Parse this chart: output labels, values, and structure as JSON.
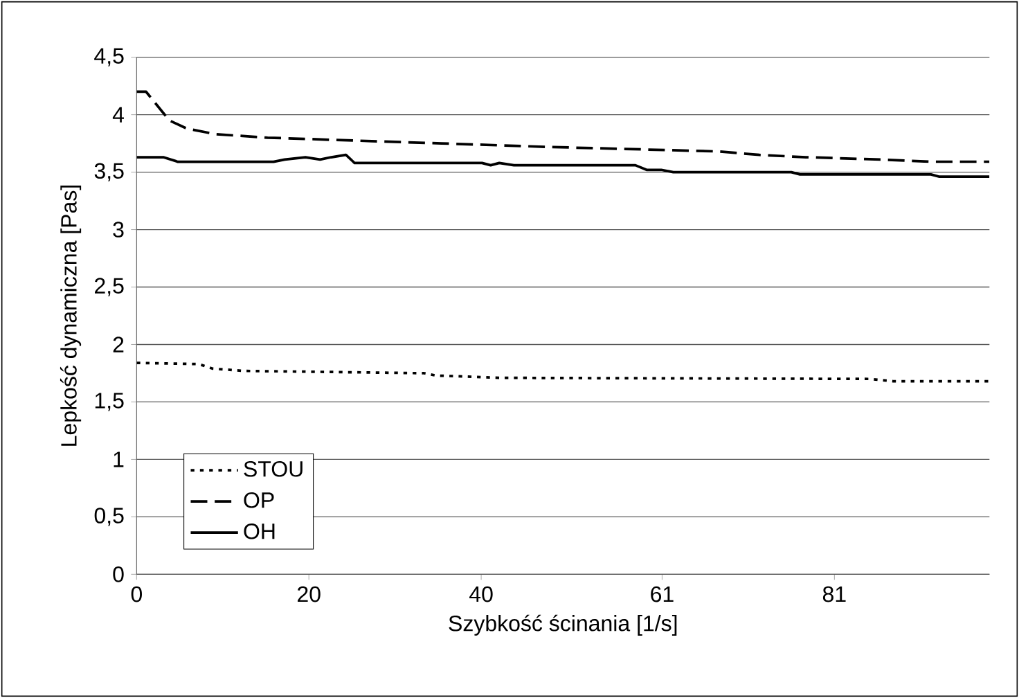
{
  "chart_data": {
    "type": "line",
    "xlabel": "Szybkość ścinania [1/s]",
    "ylabel": "Lepkość dynamiczna [Pas]",
    "xlim": [
      0,
      99
    ],
    "xticks": [
      0,
      20,
      40,
      61,
      81
    ],
    "ylim": [
      0,
      4.5
    ],
    "yticks": [
      0,
      {
        "value": 0.5,
        "label": "0,5"
      },
      1,
      {
        "value": 1.5,
        "label": "1,5"
      },
      2,
      {
        "value": 2.5,
        "label": "2,5"
      },
      3,
      {
        "value": 3.5,
        "label": "3,5"
      },
      4,
      {
        "value": 4.5,
        "label": "4,5"
      }
    ],
    "grid": "y",
    "legend": "bottom left",
    "marker": "none",
    "series": [
      {
        "name": "STOU",
        "color": "#000000",
        "line_style": "dotted",
        "x": [
          0,
          7.2,
          8.8,
          12.5,
          23.3,
          33.4,
          34.7,
          42.1,
          85.1,
          87.8,
          99
        ],
        "values": [
          1.84,
          1.83,
          1.79,
          1.77,
          1.76,
          1.75,
          1.73,
          1.71,
          1.7,
          1.68,
          1.68
        ]
      },
      {
        "name": "OP",
        "color": "#000000",
        "line_style": "dashed",
        "x": [
          0,
          1.1,
          3.8,
          5.8,
          9.2,
          15.2,
          27.3,
          35.4,
          47.5,
          67.6,
          72.3,
          77.7,
          86.4,
          92.5,
          99
        ],
        "values": [
          4.2,
          4.2,
          3.95,
          3.88,
          3.83,
          3.8,
          3.77,
          3.75,
          3.72,
          3.68,
          3.65,
          3.63,
          3.61,
          3.59,
          3.59
        ]
      },
      {
        "name": "OH",
        "color": "#000000",
        "line_style": "solid",
        "x": [
          0,
          3.1,
          4.8,
          15.9,
          17.2,
          19.6,
          21.3,
          22.6,
          24.3,
          25.3,
          40.1,
          41.1,
          42.1,
          43.8,
          57.9,
          59.2,
          60.9,
          62.3,
          76,
          77,
          92.2,
          93.2,
          99
        ],
        "values": [
          3.63,
          3.63,
          3.59,
          3.59,
          3.61,
          3.63,
          3.61,
          3.63,
          3.65,
          3.58,
          3.58,
          3.56,
          3.58,
          3.56,
          3.56,
          3.52,
          3.52,
          3.5,
          3.5,
          3.48,
          3.48,
          3.46,
          3.46
        ]
      }
    ]
  }
}
